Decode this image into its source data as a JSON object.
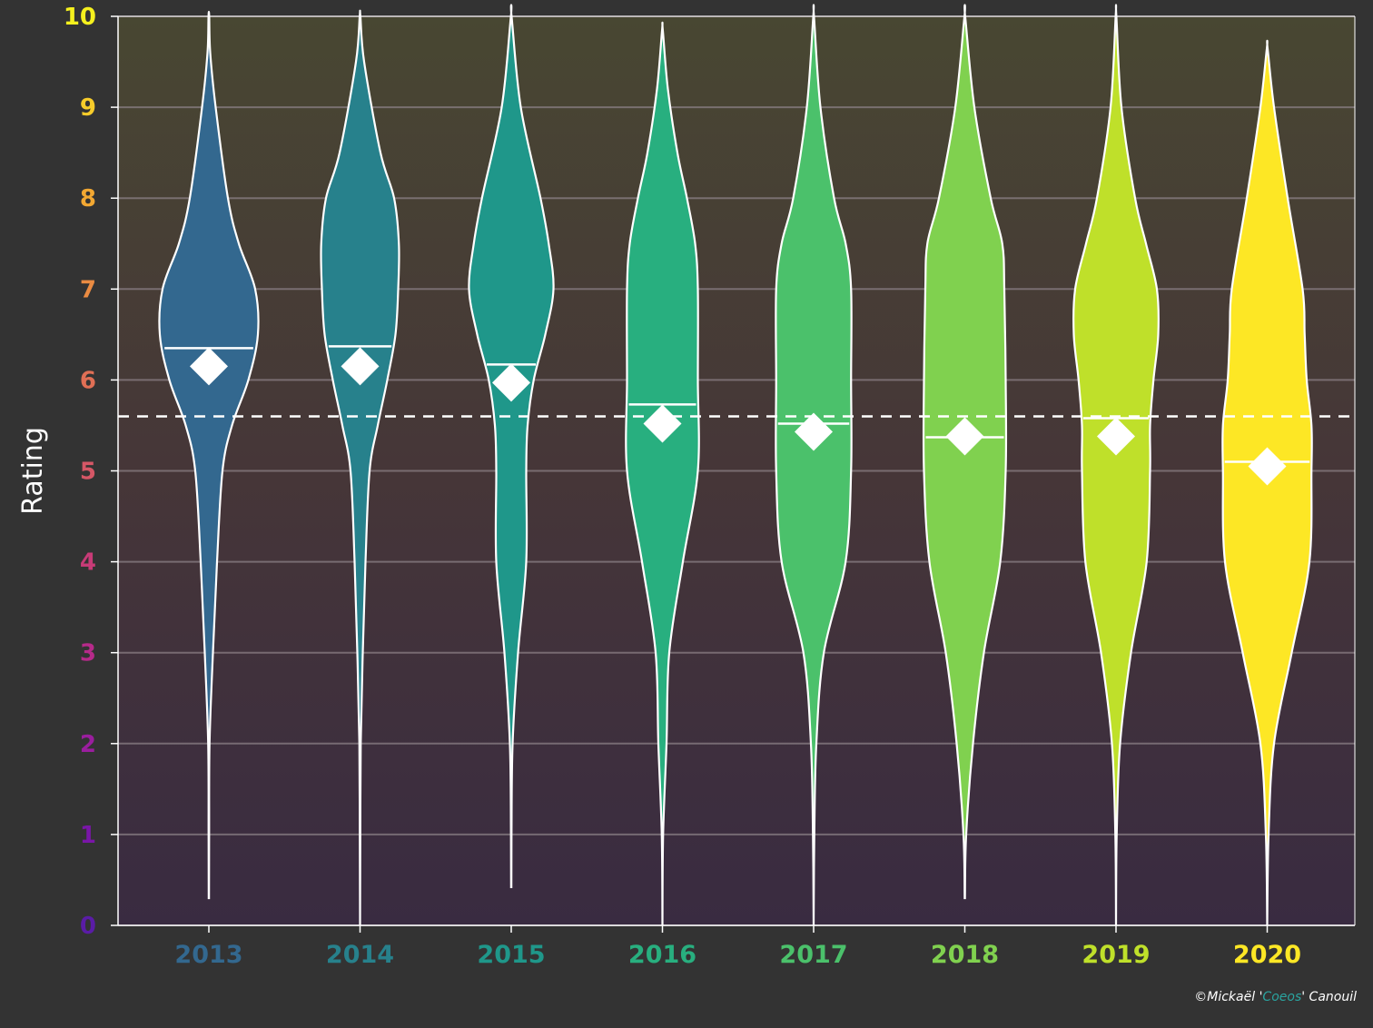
{
  "chart_data": {
    "type": "violin",
    "ylabel": "Rating",
    "xlabel": "",
    "ylim": [
      0,
      10
    ],
    "yticks": [
      0,
      1,
      2,
      3,
      4,
      5,
      6,
      7,
      8,
      9,
      10
    ],
    "ytick_colors": [
      "#5a1ca6",
      "#7a16a8",
      "#9a1e9e",
      "#b62a8a",
      "#c83b77",
      "#d55766",
      "#e06f55",
      "#ea8b42",
      "#f3a832",
      "#f7cc2a",
      "#f5f01e"
    ],
    "grid": true,
    "reference_line": 5.6,
    "categories": [
      "2013",
      "2014",
      "2015",
      "2016",
      "2017",
      "2018",
      "2019",
      "2020"
    ],
    "colors": [
      "#33688f",
      "#27818c",
      "#1f978a",
      "#28af7f",
      "#4bc16b",
      "#80d14f",
      "#bfe02a",
      "#fde725"
    ],
    "medians": [
      6.35,
      6.37,
      6.17,
      5.73,
      5.52,
      5.37,
      5.58,
      5.1
    ],
    "means": [
      6.15,
      6.15,
      5.97,
      5.52,
      5.43,
      5.38,
      5.38,
      5.05
    ],
    "ranges": [
      [
        0.3,
        10
      ],
      [
        0,
        10
      ],
      [
        0.42,
        10
      ],
      [
        0,
        9.85
      ],
      [
        0,
        10
      ],
      [
        0.3,
        10
      ],
      [
        0,
        10
      ],
      [
        0,
        9.65
      ]
    ],
    "density_profiles": [
      [
        [
          0.3,
          0.002
        ],
        [
          1.0,
          0.004
        ],
        [
          2.0,
          0.01
        ],
        [
          3.0,
          0.06
        ],
        [
          4.0,
          0.12
        ],
        [
          5.0,
          0.2
        ],
        [
          5.5,
          0.34
        ],
        [
          6.0,
          0.58
        ],
        [
          6.5,
          0.72
        ],
        [
          7.0,
          0.68
        ],
        [
          7.5,
          0.44
        ],
        [
          8.0,
          0.28
        ],
        [
          9.0,
          0.1
        ],
        [
          9.6,
          0.02
        ],
        [
          10,
          0.005
        ]
      ],
      [
        [
          0,
          0.0
        ],
        [
          1.0,
          0.004
        ],
        [
          2.0,
          0.01
        ],
        [
          3.0,
          0.04
        ],
        [
          4.0,
          0.08
        ],
        [
          5.0,
          0.14
        ],
        [
          5.5,
          0.26
        ],
        [
          6.0,
          0.4
        ],
        [
          6.5,
          0.52
        ],
        [
          7.0,
          0.56
        ],
        [
          7.5,
          0.57
        ],
        [
          8.0,
          0.5
        ],
        [
          8.5,
          0.3
        ],
        [
          9.5,
          0.06
        ],
        [
          10,
          0.005
        ]
      ],
      [
        [
          0.42,
          0.002
        ],
        [
          1.0,
          0.004
        ],
        [
          2.0,
          0.02
        ],
        [
          3.0,
          0.1
        ],
        [
          4.0,
          0.22
        ],
        [
          5.0,
          0.22
        ],
        [
          5.5,
          0.24
        ],
        [
          6.0,
          0.33
        ],
        [
          6.5,
          0.5
        ],
        [
          7.0,
          0.62
        ],
        [
          7.5,
          0.55
        ],
        [
          8.0,
          0.43
        ],
        [
          9.0,
          0.14
        ],
        [
          10,
          0.005
        ]
      ],
      [
        [
          0,
          0.0
        ],
        [
          1.0,
          0.01
        ],
        [
          2.0,
          0.06
        ],
        [
          3.0,
          0.1
        ],
        [
          4.0,
          0.3
        ],
        [
          5.0,
          0.52
        ],
        [
          6.0,
          0.52
        ],
        [
          7.0,
          0.52
        ],
        [
          7.5,
          0.48
        ],
        [
          8.0,
          0.36
        ],
        [
          8.5,
          0.22
        ],
        [
          9.2,
          0.08
        ],
        [
          9.85,
          0.005
        ]
      ],
      [
        [
          0,
          0.0
        ],
        [
          1.0,
          0.01
        ],
        [
          2.0,
          0.04
        ],
        [
          3.0,
          0.15
        ],
        [
          4.0,
          0.47
        ],
        [
          5.0,
          0.55
        ],
        [
          6.0,
          0.55
        ],
        [
          7.0,
          0.55
        ],
        [
          7.5,
          0.47
        ],
        [
          8.0,
          0.3
        ],
        [
          9.0,
          0.1
        ],
        [
          10,
          0.005
        ]
      ],
      [
        [
          0.3,
          0.002
        ],
        [
          1.0,
          0.02
        ],
        [
          2.0,
          0.12
        ],
        [
          3.0,
          0.28
        ],
        [
          4.0,
          0.52
        ],
        [
          5.0,
          0.6
        ],
        [
          6.0,
          0.6
        ],
        [
          7.0,
          0.58
        ],
        [
          7.5,
          0.55
        ],
        [
          8.0,
          0.38
        ],
        [
          9.0,
          0.14
        ],
        [
          10,
          0.005
        ]
      ],
      [
        [
          0,
          0.0
        ],
        [
          1.0,
          0.01
        ],
        [
          2.0,
          0.06
        ],
        [
          3.0,
          0.22
        ],
        [
          4.0,
          0.45
        ],
        [
          5.0,
          0.5
        ],
        [
          5.5,
          0.5
        ],
        [
          6.0,
          0.55
        ],
        [
          6.5,
          0.62
        ],
        [
          7.0,
          0.6
        ],
        [
          7.5,
          0.44
        ],
        [
          8.0,
          0.28
        ],
        [
          9.0,
          0.08
        ],
        [
          10,
          0.005
        ]
      ],
      [
        [
          0,
          0.0
        ],
        [
          1.0,
          0.02
        ],
        [
          2.0,
          0.1
        ],
        [
          3.0,
          0.36
        ],
        [
          4.0,
          0.62
        ],
        [
          5.0,
          0.65
        ],
        [
          5.5,
          0.65
        ],
        [
          6.0,
          0.58
        ],
        [
          6.5,
          0.55
        ],
        [
          7.0,
          0.52
        ],
        [
          8.0,
          0.3
        ],
        [
          9.0,
          0.1
        ],
        [
          9.65,
          0.005
        ]
      ]
    ]
  },
  "credit": {
    "prefix": "©Mickaël '",
    "highlight": "Coeos",
    "suffix": "' Canouil"
  }
}
